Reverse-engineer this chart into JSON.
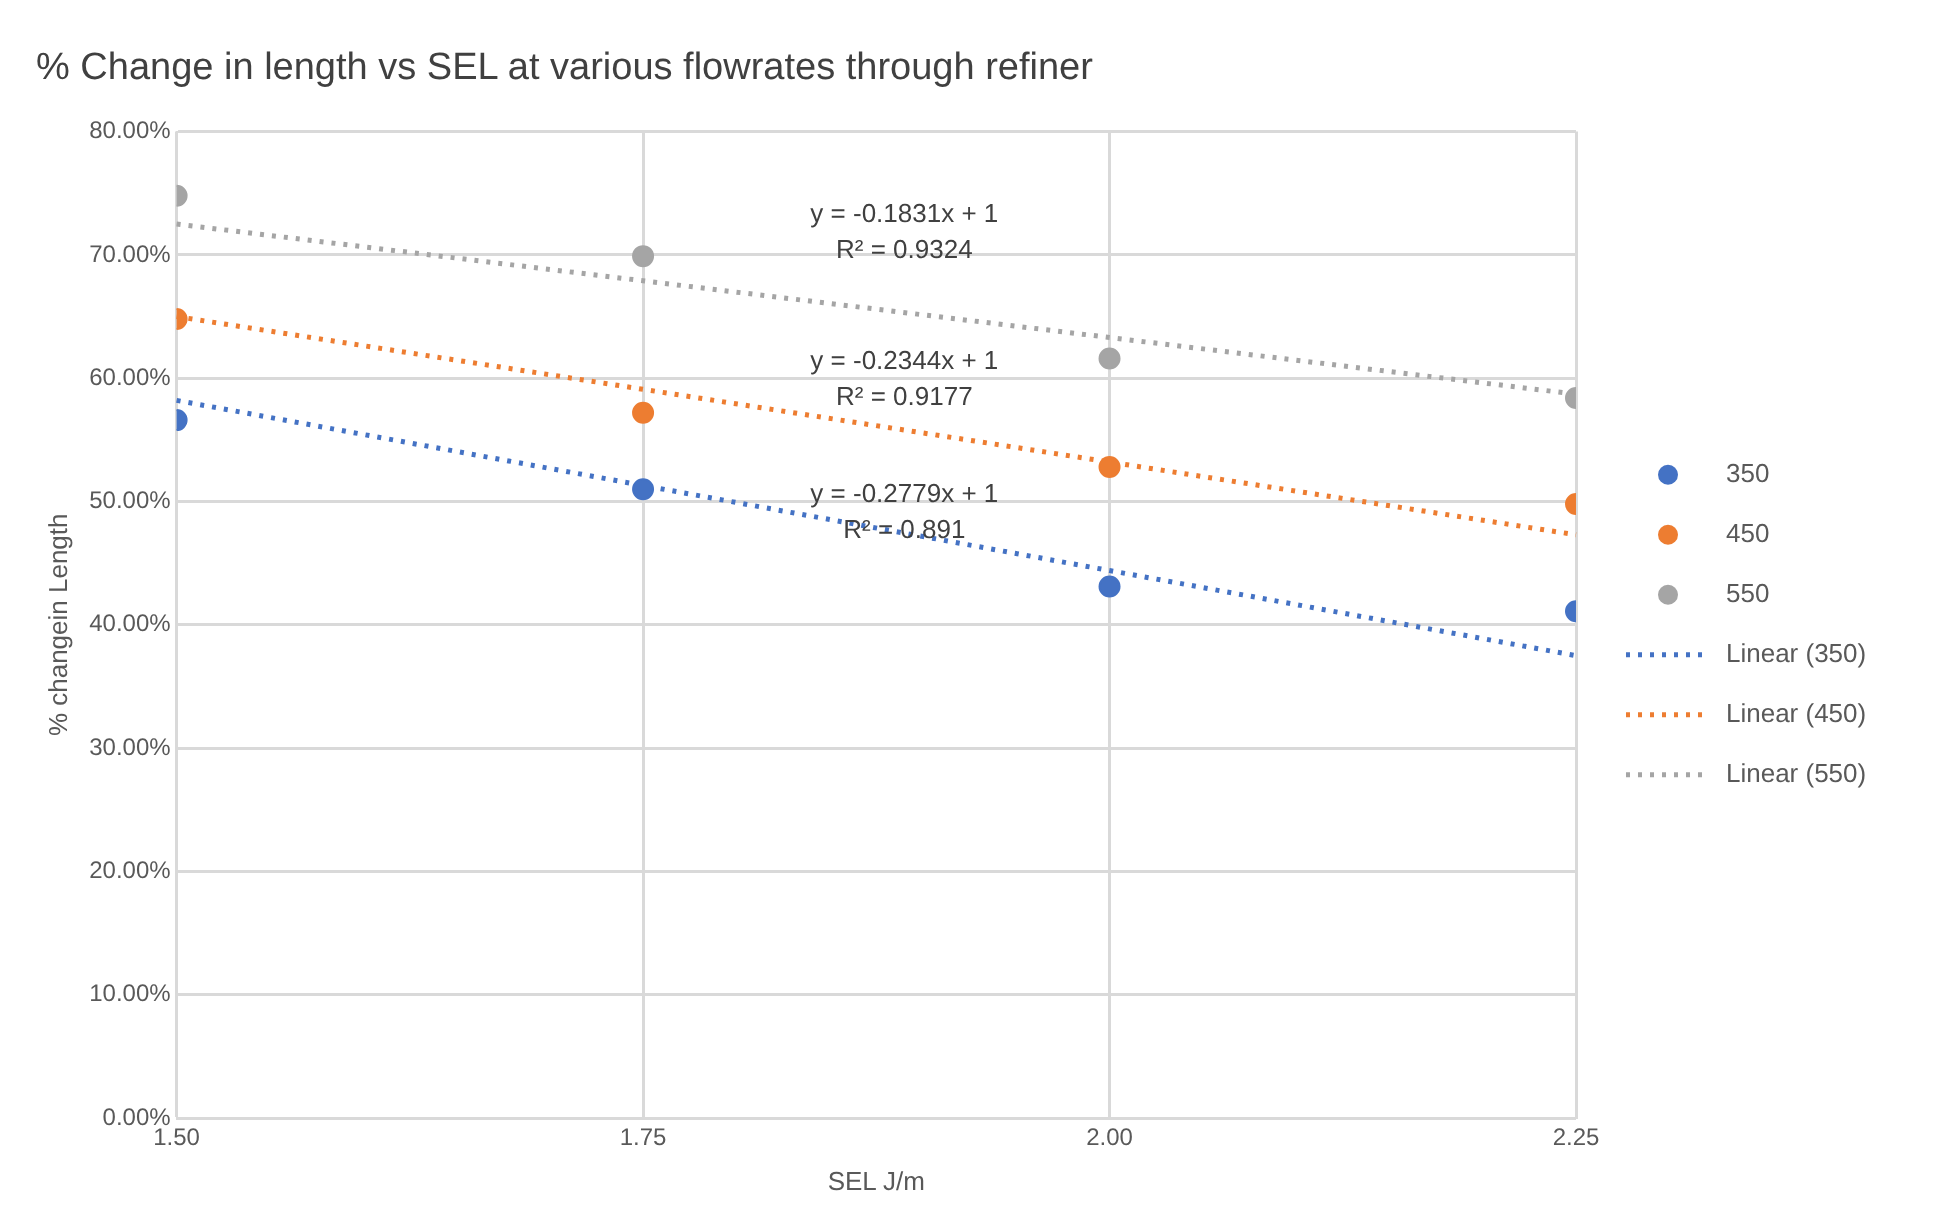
{
  "chart_data": {
    "type": "scatter",
    "title": "% Change in length vs SEL at various flowrates through refiner",
    "xlabel": "SEL J/m",
    "ylabel": "% changein Length",
    "x": [
      1.5,
      1.75,
      2.0,
      2.25
    ],
    "series": [
      {
        "name": "350",
        "color": "#4472c4",
        "values": [
          56.6,
          51.0,
          43.1,
          41.1
        ],
        "marker": "circle"
      },
      {
        "name": "450",
        "color": "#ed7d31",
        "values": [
          64.8,
          57.2,
          52.8,
          49.8
        ],
        "marker": "circle"
      },
      {
        "name": "550",
        "color": "#a5a5a5",
        "values": [
          74.8,
          69.9,
          61.6,
          58.4
        ],
        "marker": "circle"
      },
      {
        "name": "Linear (350)",
        "type": "line",
        "color": "#4472c4",
        "values": [
          58.2,
          51.3,
          44.4,
          37.5
        ],
        "marker": "none",
        "line_style": "dotted"
      },
      {
        "name": "Linear (450)",
        "type": "line",
        "color": "#ed7d31",
        "values": [
          65.0,
          59.1,
          53.2,
          47.3
        ],
        "marker": "none",
        "line_style": "dotted"
      },
      {
        "name": "Linear (550)",
        "type": "line",
        "color": "#a5a5a5",
        "values": [
          72.5,
          67.9,
          63.3,
          58.7
        ],
        "marker": "none",
        "line_style": "dotted"
      }
    ],
    "annotations": [
      "y = -0.1831x + 1\nR² = 0.9324",
      "y = -0.2344x + 1\nR² = 0.9177",
      "y = -0.2779x + 1\nR² = 0.891"
    ],
    "xlim": [
      1.5,
      2.25
    ],
    "xticks": [
      {
        "value": 1.5,
        "label": "1.50"
      },
      {
        "value": 1.75,
        "label": "1.75"
      },
      {
        "value": 2.0,
        "label": "2.00"
      },
      {
        "value": 2.25,
        "label": "2.25"
      }
    ],
    "ylim": [
      0,
      80
    ],
    "yticks": [
      {
        "value": 0,
        "label": "0.00%"
      },
      {
        "value": 10,
        "label": "10.00%"
      },
      {
        "value": 20,
        "label": "20.00%"
      },
      {
        "value": 30,
        "label": "30.00%"
      },
      {
        "value": 40,
        "label": "40.00%"
      },
      {
        "value": 50,
        "label": "50.00%"
      },
      {
        "value": 60,
        "label": "60.00%"
      },
      {
        "value": 70,
        "label": "70.00%"
      },
      {
        "value": 80,
        "label": "80.00%"
      }
    ],
    "grid": true,
    "legend": "right"
  }
}
